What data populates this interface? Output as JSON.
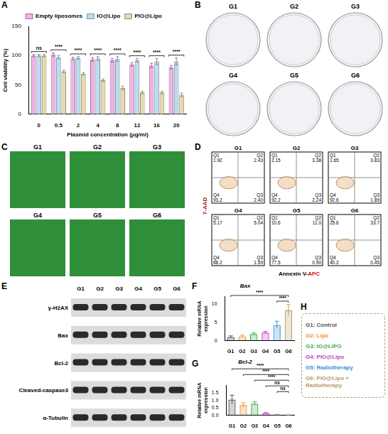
{
  "chart_data": [
    {
      "type": "bar",
      "panel_label": "A",
      "xlabel": "Plasmid concentration (μg/ml)",
      "ylabel": "Cell viability (%)",
      "categories": [
        "0",
        "0.5",
        "2",
        "4",
        "8",
        "12",
        "16",
        "20"
      ],
      "series": [
        {
          "name": "Empty liposomes",
          "color": "#f0b3e6",
          "values": [
            100,
            102,
            95,
            93,
            92,
            85,
            83,
            80
          ],
          "errors": [
            2,
            3,
            2,
            3,
            3,
            3,
            4,
            3
          ]
        },
        {
          "name": "IO@Lipo",
          "color": "#bcdcf2",
          "values": [
            100,
            97,
            96,
            95,
            94,
            92,
            90,
            90
          ],
          "errors": [
            2,
            3,
            2,
            3,
            4,
            3,
            5,
            6
          ]
        },
        {
          "name": "PIO@Lipo",
          "color": "#e6d9ad",
          "values": [
            100,
            73,
            69,
            58,
            45,
            37,
            37,
            33
          ],
          "errors": [
            2,
            2,
            2,
            2,
            3,
            2,
            2,
            3
          ]
        }
      ],
      "significance": [
        "ns",
        "****",
        "****",
        "****",
        "****",
        "****",
        "****",
        "****"
      ],
      "ylim": [
        0,
        150
      ],
      "yticks": [
        0,
        50,
        100,
        150
      ],
      "grid": false,
      "legend": "top"
    },
    {
      "type": "bar",
      "panel_label": "F",
      "title": "Bax",
      "ylabel": "Relative mRNA expression",
      "categories": [
        "G1",
        "G2",
        "G3",
        "G4",
        "G5",
        "G6"
      ],
      "values": [
        1.0,
        1.2,
        1.8,
        2.2,
        4.3,
        8.3
      ],
      "errors": [
        0.3,
        0.3,
        0.3,
        0.3,
        1.0,
        1.5
      ],
      "colors": [
        "#555555",
        "#f0913a",
        "#3fae49",
        "#c43fc4",
        "#3d8fd6",
        "#b5a06a"
      ],
      "significance": [
        {
          "pair": [
            "G1",
            "G6"
          ],
          "text": "****"
        },
        {
          "pair": [
            "G5",
            "G6"
          ],
          "text": "****"
        }
      ],
      "ylim": [
        0,
        12
      ],
      "yticks": [
        0,
        5,
        10
      ],
      "grid": false
    },
    {
      "type": "bar",
      "panel_label": "G",
      "title": "Bcl-2",
      "ylabel": "Relative mRNA expression",
      "categories": [
        "G1",
        "G2",
        "G3",
        "G4",
        "G5",
        "G6"
      ],
      "values": [
        1.05,
        0.68,
        0.78,
        0.15,
        0.03,
        0.02
      ],
      "errors": [
        0.3,
        0.15,
        0.12,
        0.03,
        0.01,
        0.01
      ],
      "colors": [
        "#555555",
        "#f0913a",
        "#3fae49",
        "#c43fc4",
        "#3d8fd6",
        "#b5a06a"
      ],
      "significance": [
        {
          "pair": [
            "G1",
            "G6"
          ],
          "text": "****"
        },
        {
          "pair": [
            "G2",
            "G6"
          ],
          "text": "****"
        },
        {
          "pair": [
            "G3",
            "G6"
          ],
          "text": "****"
        },
        {
          "pair": [
            "G4",
            "G6"
          ],
          "text": "ns"
        },
        {
          "pair": [
            "G5",
            "G6"
          ],
          "text": "ns"
        }
      ],
      "ylim": [
        0,
        2
      ],
      "yticks": [
        {
          "value": 0,
          "label": "0.0"
        },
        0.5,
        {
          "value": 1,
          "label": "1.0"
        },
        1.5
      ],
      "grid": false
    }
  ],
  "panel_B": {
    "panel_label": "B",
    "plates": [
      "G1",
      "G2",
      "G3",
      "G4",
      "G5",
      "G6"
    ]
  },
  "panel_C": {
    "panel_label": "C",
    "images": [
      "G1",
      "G2",
      "G3",
      "G4",
      "G5",
      "G6"
    ]
  },
  "panel_D": {
    "panel_label": "D",
    "y_label": "7-AAD",
    "x_label_parts": [
      "Annexin V-",
      "APC"
    ],
    "plots": [
      {
        "group": "G1",
        "quadrants": [
          {
            "name": "Q1",
            "value": "1.92"
          },
          {
            "name": "Q2",
            "value": "2.43"
          },
          {
            "name": "Q3",
            "value": "2.40"
          },
          {
            "name": "Q4",
            "value": "93.2"
          }
        ]
      },
      {
        "group": "G2",
        "quadrants": [
          {
            "name": "Q1",
            "value": "2.15"
          },
          {
            "name": "Q2",
            "value": "3.38"
          },
          {
            "name": "Q3",
            "value": "2.24"
          },
          {
            "name": "Q4",
            "value": "92.2"
          }
        ]
      },
      {
        "group": "G3",
        "quadrants": [
          {
            "name": "Q1",
            "value": "1.65"
          },
          {
            "name": "Q2",
            "value": "3.83"
          },
          {
            "name": "Q3",
            "value": "1.89"
          },
          {
            "name": "Q4",
            "value": "92.6"
          }
        ]
      },
      {
        "group": "G4",
        "quadrants": [
          {
            "name": "Q1",
            "value": "5.17"
          },
          {
            "name": "Q2",
            "value": "5.04"
          },
          {
            "name": "Q3",
            "value": "1.59"
          },
          {
            "name": "Q4",
            "value": "88.2"
          }
        ]
      },
      {
        "group": "G5",
        "quadrants": [
          {
            "name": "Q1",
            "value": "10.6"
          },
          {
            "name": "Q2",
            "value": "11.0"
          },
          {
            "name": "Q3",
            "value": "0.90"
          },
          {
            "name": "Q4",
            "value": "77.5"
          }
        ]
      },
      {
        "group": "G6",
        "quadrants": [
          {
            "name": "Q1",
            "value": "25.6"
          },
          {
            "name": "Q2",
            "value": "33.7"
          },
          {
            "name": "Q3",
            "value": "0.45"
          },
          {
            "name": "Q4",
            "value": "40.2"
          }
        ]
      }
    ]
  },
  "panel_E": {
    "panel_label": "E",
    "columns": [
      "G1",
      "G2",
      "G3",
      "G4",
      "G5",
      "G6"
    ],
    "rows": [
      "γ-H2AX",
      "Bax",
      "Bcl-2",
      "Cleaved-caspase3",
      "α-Tubulin"
    ]
  },
  "panel_H": {
    "panel_label": "H",
    "entries": [
      {
        "text": "G1: Control",
        "color": "#555555"
      },
      {
        "text": "G2: Lipo",
        "color": "#f0913a"
      },
      {
        "text": "G3: IO@LIPO",
        "color": "#3fae49"
      },
      {
        "text": "G4: PIO@Lipo",
        "color": "#c43fc4"
      },
      {
        "text": "G5: Radiotherapy",
        "color": "#3d8fd6"
      },
      {
        "text": "G6: PIO@Lipo + Radiotherapy",
        "color": "#b5a06a"
      }
    ]
  }
}
